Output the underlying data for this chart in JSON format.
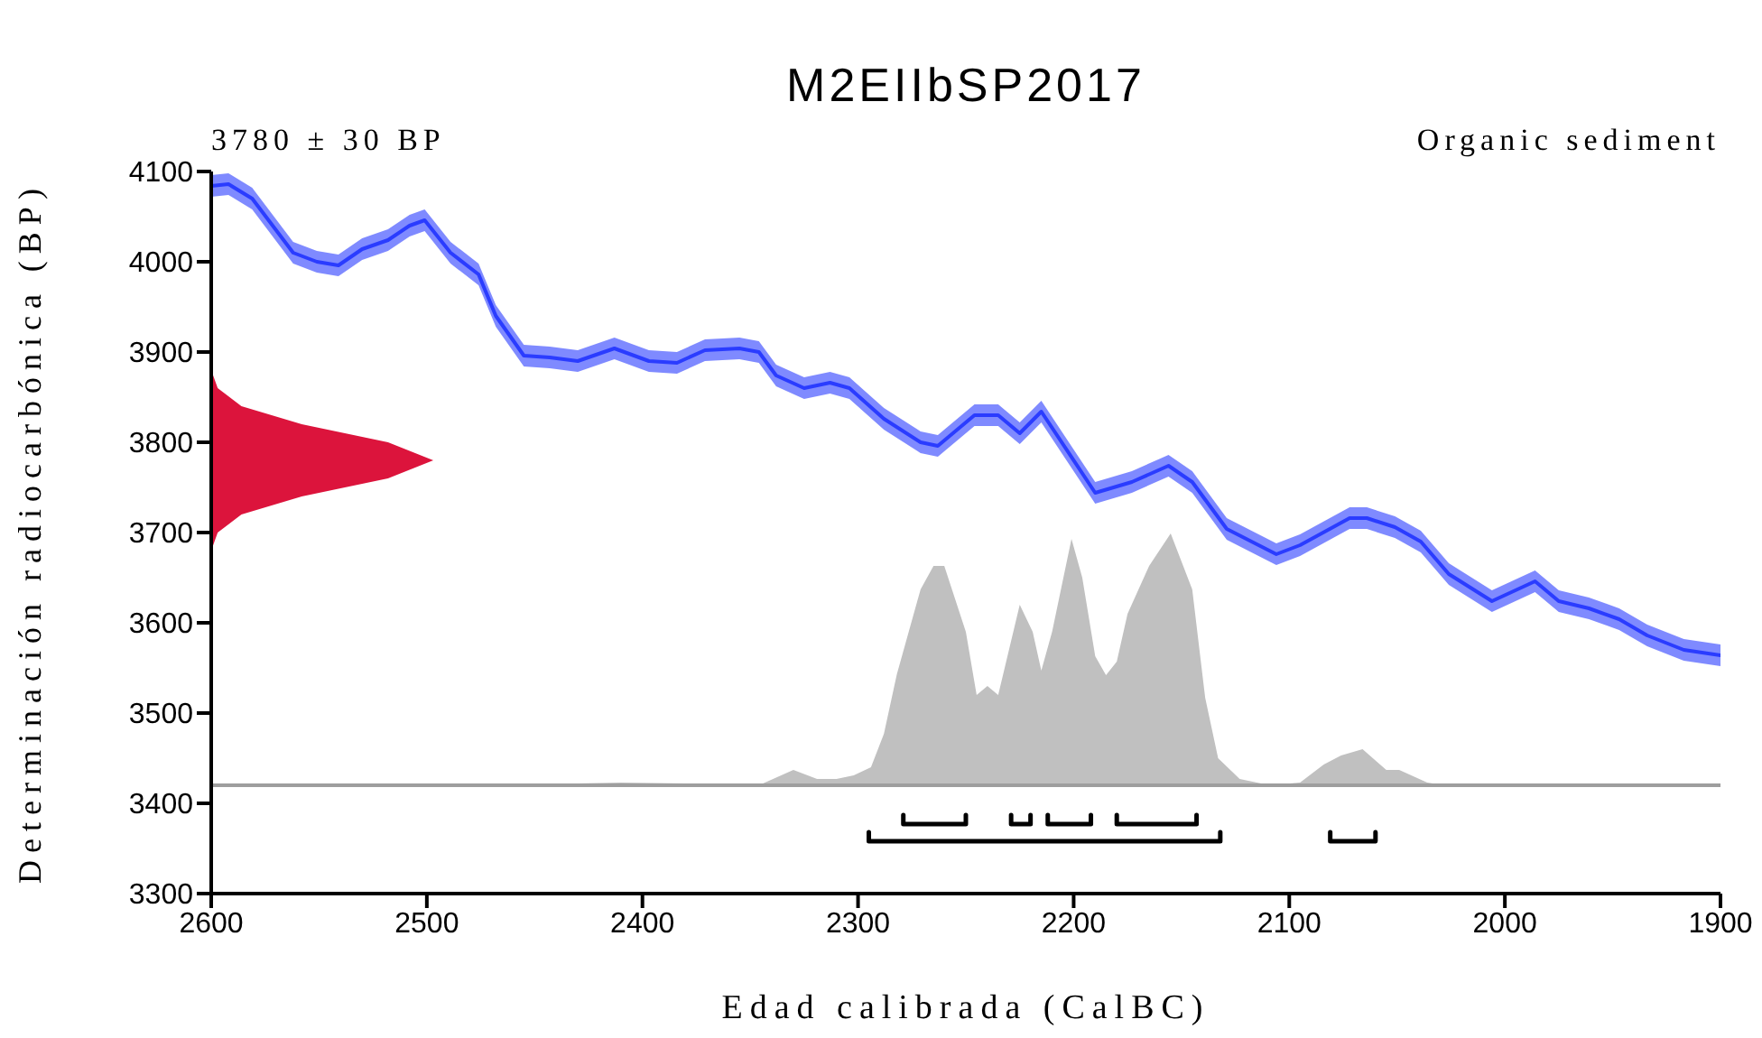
{
  "chart_data": {
    "type": "area",
    "title": "M2EIIbSP2017",
    "annotations": [
      "3780 ± 30 BP",
      "Organic sediment"
    ],
    "xlabel": "Edad calibrada (CalBC)",
    "ylabel": "Determinación radiocarbónica (BP)",
    "xlim": [
      2600,
      1900
    ],
    "xticks": [
      2600,
      2500,
      2400,
      2300,
      2200,
      2100,
      2000,
      1900
    ],
    "ylim": [
      3300,
      4100
    ],
    "yticks": [
      3300,
      3400,
      3500,
      3600,
      3700,
      3800,
      3900,
      4000,
      4100
    ],
    "grid": false,
    "legend": false,
    "ref_lines": [
      {
        "axis": "y",
        "value": 3420,
        "color": "#9e9e9e"
      }
    ],
    "series": [
      {
        "color": "#c0c0c0",
        "x": [
          2470,
          2410,
          2380,
          2360,
          2346,
          2330,
          2319,
          2310,
          2302,
          2294,
          2288,
          2282,
          2271,
          2265,
          2260,
          2250,
          2245,
          2240,
          2235,
          2225,
          2219,
          2215,
          2210,
          2201,
          2196,
          2190,
          2185,
          2180,
          2175,
          2165,
          2155,
          2145,
          2139,
          2133,
          2123,
          2109,
          2095,
          2084,
          2076,
          2066,
          2055,
          2049,
          2036,
          2028
        ],
        "values": [
          3420,
          3423,
          3422,
          3420,
          3420,
          3437,
          3427,
          3427,
          3431,
          3440,
          3477,
          3543,
          3637,
          3663,
          3663,
          3590,
          3520,
          3530,
          3520,
          3620,
          3590,
          3547,
          3590,
          3693,
          3650,
          3563,
          3542,
          3557,
          3610,
          3663,
          3699,
          3637,
          3517,
          3450,
          3427,
          3420,
          3423,
          3443,
          3453,
          3460,
          3437,
          3437,
          3423,
          3420
        ]
      },
      {
        "type": "line",
        "color": "#2a3cff",
        "x": [
          2600,
          2592,
          2581,
          2562,
          2551,
          2541,
          2530,
          2518,
          2508,
          2501,
          2489,
          2476,
          2468,
          2455,
          2443,
          2430,
          2413,
          2397,
          2384,
          2371,
          2355,
          2346,
          2338,
          2325,
          2313,
          2304,
          2288,
          2271,
          2263,
          2246,
          2235,
          2225,
          2215,
          2190,
          2173,
          2156,
          2145,
          2129,
          2106,
          2095,
          2072,
          2064,
          2051,
          2039,
          2026,
          2006,
          1986,
          1975,
          1961,
          1947,
          1934,
          1917,
          1900
        ],
        "values": [
          4084,
          4086,
          4070,
          4010,
          4000,
          3996,
          4014,
          4024,
          4040,
          4046,
          4010,
          3986,
          3940,
          3896,
          3894,
          3890,
          3904,
          3890,
          3888,
          3902,
          3904,
          3900,
          3874,
          3860,
          3866,
          3860,
          3826,
          3800,
          3796,
          3830,
          3830,
          3810,
          3834,
          3744,
          3756,
          3774,
          3756,
          3704,
          3676,
          3686,
          3716,
          3716,
          3706,
          3690,
          3654,
          3624,
          3646,
          3624,
          3616,
          3604,
          3586,
          3570,
          3564
        ],
        "lower": [
          4072,
          4074,
          4058,
          3998,
          3988,
          3984,
          4002,
          4012,
          4028,
          4034,
          3998,
          3974,
          3928,
          3884,
          3882,
          3878,
          3892,
          3878,
          3876,
          3890,
          3892,
          3888,
          3862,
          3848,
          3854,
          3848,
          3814,
          3788,
          3784,
          3818,
          3818,
          3798,
          3822,
          3732,
          3744,
          3762,
          3744,
          3692,
          3664,
          3674,
          3704,
          3704,
          3694,
          3678,
          3642,
          3612,
          3634,
          3612,
          3604,
          3592,
          3574,
          3558,
          3552
        ],
        "upper": [
          4096,
          4098,
          4082,
          4022,
          4012,
          4008,
          4026,
          4036,
          4052,
          4058,
          4022,
          3998,
          3952,
          3908,
          3906,
          3902,
          3916,
          3902,
          3900,
          3914,
          3916,
          3912,
          3886,
          3872,
          3878,
          3872,
          3838,
          3812,
          3808,
          3842,
          3842,
          3822,
          3846,
          3756,
          3768,
          3786,
          3768,
          3716,
          3688,
          3698,
          3728,
          3728,
          3718,
          3702,
          3666,
          3636,
          3658,
          3636,
          3628,
          3616,
          3598,
          3582,
          3576
        ]
      },
      {
        "color": "#dc143c",
        "x": [
          2600,
          2597,
          2586,
          2558,
          2518,
          2497,
          2518,
          2558,
          2586,
          2597,
          2600
        ],
        "values": [
          3680,
          3700,
          3720,
          3740,
          3760,
          3780,
          3800,
          3820,
          3840,
          3860,
          3880
        ]
      },
      {
        "type": "line",
        "color": "#000000",
        "x": [
          2279,
          2279,
          2250,
          2250
        ],
        "values": [
          3387,
          3377,
          3377,
          3387
        ]
      },
      {
        "type": "line",
        "color": "#000000",
        "x": [
          2229,
          2229,
          2220,
          2220
        ],
        "values": [
          3387,
          3377,
          3377,
          3387
        ]
      },
      {
        "type": "line",
        "color": "#000000",
        "x": [
          2212,
          2212,
          2192,
          2192
        ],
        "values": [
          3387,
          3377,
          3377,
          3387
        ]
      },
      {
        "type": "line",
        "color": "#000000",
        "x": [
          2180,
          2180,
          2143,
          2143
        ],
        "values": [
          3387,
          3377,
          3377,
          3387
        ]
      },
      {
        "type": "line",
        "color": "#000000",
        "x": [
          2295,
          2295,
          2132,
          2132
        ],
        "values": [
          3368,
          3358,
          3358,
          3368
        ]
      },
      {
        "type": "line",
        "color": "#000000",
        "x": [
          2081,
          2081,
          2060,
          2060
        ],
        "values": [
          3368,
          3358,
          3358,
          3368
        ]
      }
    ]
  }
}
